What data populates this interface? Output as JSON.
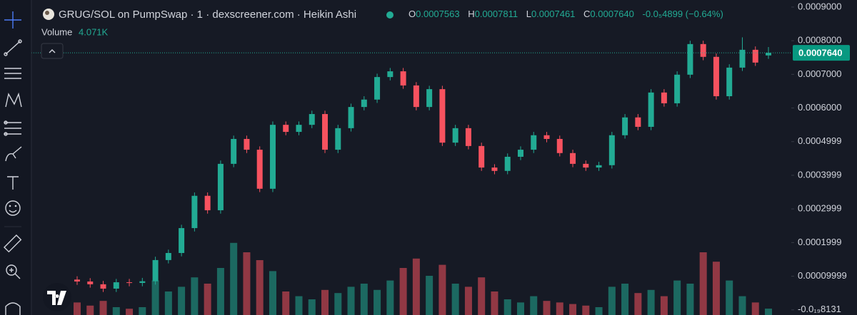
{
  "header": {
    "title": "GRUG/SOL on PumpSwap · 1 · dexscreener.com · Heikin Ashi",
    "legend": {
      "o_label": "O",
      "o": "0.0007563",
      "h_label": "H",
      "h": "0.0007811",
      "l_label": "L",
      "l": "0.0007461",
      "c_label": "C",
      "c": "0.0007640",
      "change": "-0.0₅4899 (−0.64%)"
    },
    "volume_label": "Volume",
    "volume_value": "4.071K"
  },
  "chart_data": {
    "type": "candlestick",
    "up_color": "#22ab94",
    "down_color": "#f7525f",
    "grid": false,
    "ylim": [
      -1.53e-05,
      0.000921
    ],
    "yticks": [
      {
        "value": 0.0009,
        "label": "0.0009000"
      },
      {
        "value": 0.0008,
        "label": "0.0008000"
      },
      {
        "value": 0.0007,
        "label": "0.0007000"
      },
      {
        "value": 0.0006,
        "label": "0.0006000"
      },
      {
        "value": 0.0005,
        "label": "0.0004999"
      },
      {
        "value": 0.0004,
        "label": "0.0003999"
      },
      {
        "value": 0.0003,
        "label": "0.0002999"
      },
      {
        "value": 0.0002,
        "label": "0.0001999"
      },
      {
        "value": 0.0001,
        "label": "0.00009999"
      },
      {
        "value": -8.131e-20,
        "label": "-0.0₁₉8131"
      }
    ],
    "last_price": {
      "value": 0.000764,
      "label": "0.0007640"
    },
    "open": [
      9e-05,
      8.43e-05,
      7.6e-05,
      6.31e-05,
      8.2e-05,
      8e-05,
      8.5e-05,
      0.000148,
      0.000169,
      0.000243,
      0.000339,
      0.000296,
      0.000434,
      0.000508,
      0.000476,
      0.00036,
      0.00055,
      0.000529,
      0.00055,
      0.000582,
      0.000476,
      0.00054,
      0.000603,
      0.000625,
      0.000692,
      0.000709,
      0.000667,
      0.000603,
      0.000656,
      0.000497,
      0.00054,
      0.000487,
      0.000423,
      0.000413,
      0.000455,
      0.000476,
      0.000519,
      0.000508,
      0.000466,
      0.000434,
      0.000423,
      0.00043,
      0.000519,
      0.000572,
      0.000544,
      0.000646,
      0.000614,
      0.000699,
      0.00079,
      0.000752,
      0.000635,
      0.00072,
      0.000773,
      0.0007563
    ],
    "high": [
      0.0001,
      9.43e-05,
      8.6e-05,
      9.2e-05,
      9.2e-05,
      9.5e-05,
      0.000158,
      0.000179,
      0.000253,
      0.000349,
      0.000349,
      0.000444,
      0.000518,
      0.000518,
      0.000486,
      0.00056,
      0.00056,
      0.00056,
      0.000592,
      0.000592,
      0.00055,
      0.000613,
      0.000635,
      0.000702,
      0.000719,
      0.000719,
      0.000677,
      0.000666,
      0.000666,
      0.00055,
      0.00055,
      0.000497,
      0.000433,
      0.000465,
      0.000486,
      0.000529,
      0.000529,
      0.000518,
      0.000476,
      0.000444,
      0.00044,
      0.000529,
      0.000582,
      0.000582,
      0.000656,
      0.000656,
      0.000709,
      0.0008,
      0.0008,
      0.000762,
      0.00073,
      0.00081,
      0.000783,
      0.0007811
    ],
    "low": [
      7.43e-05,
      6.6e-05,
      5.31e-05,
      5.31e-05,
      7e-05,
      7e-05,
      7.5e-05,
      0.000138,
      0.000159,
      0.000233,
      0.000286,
      0.000286,
      0.000424,
      0.000466,
      0.00035,
      0.00035,
      0.000519,
      0.000519,
      0.00054,
      0.000466,
      0.000466,
      0.00053,
      0.000593,
      0.000615,
      0.000682,
      0.000657,
      0.000593,
      0.000593,
      0.000487,
      0.000487,
      0.000477,
      0.000413,
      0.000403,
      0.000403,
      0.000445,
      0.000466,
      0.000498,
      0.000456,
      0.000424,
      0.000413,
      0.000413,
      0.00042,
      0.000509,
      0.000534,
      0.000534,
      0.000604,
      0.000604,
      0.000689,
      0.000742,
      0.000625,
      0.000625,
      0.00071,
      0.000725,
      0.0007461
    ],
    "close": [
      8.43e-05,
      7.6e-05,
      6.31e-05,
      8.2e-05,
      8e-05,
      8.5e-05,
      0.000148,
      0.000169,
      0.000243,
      0.000339,
      0.000296,
      0.000434,
      0.000508,
      0.000476,
      0.00036,
      0.00055,
      0.000529,
      0.00055,
      0.000582,
      0.000476,
      0.00054,
      0.000603,
      0.000625,
      0.000692,
      0.000709,
      0.000667,
      0.000603,
      0.000656,
      0.000497,
      0.00054,
      0.000487,
      0.000423,
      0.000413,
      0.000455,
      0.000476,
      0.000519,
      0.000508,
      0.000466,
      0.000434,
      0.000423,
      0.00043,
      0.000519,
      0.000572,
      0.000544,
      0.000646,
      0.000614,
      0.000699,
      0.00079,
      0.000752,
      0.000635,
      0.00072,
      0.000773,
      0.000735,
      0.000764
    ],
    "volume": [
      8000,
      6000,
      9000,
      5000,
      4000,
      5000,
      22000,
      15000,
      18000,
      24000,
      20000,
      30000,
      46000,
      40000,
      35000,
      28000,
      15000,
      12000,
      10000,
      16000,
      14000,
      18000,
      20000,
      16000,
      22000,
      30000,
      36000,
      25000,
      32000,
      20000,
      18000,
      24000,
      15000,
      10000,
      8000,
      12000,
      9000,
      8000,
      7000,
      6000,
      5000,
      18000,
      20000,
      14000,
      16000,
      12000,
      22000,
      20000,
      40000,
      34000,
      22000,
      12000,
      8000,
      4071
    ],
    "volume_lim": [
      0,
      50000
    ]
  }
}
